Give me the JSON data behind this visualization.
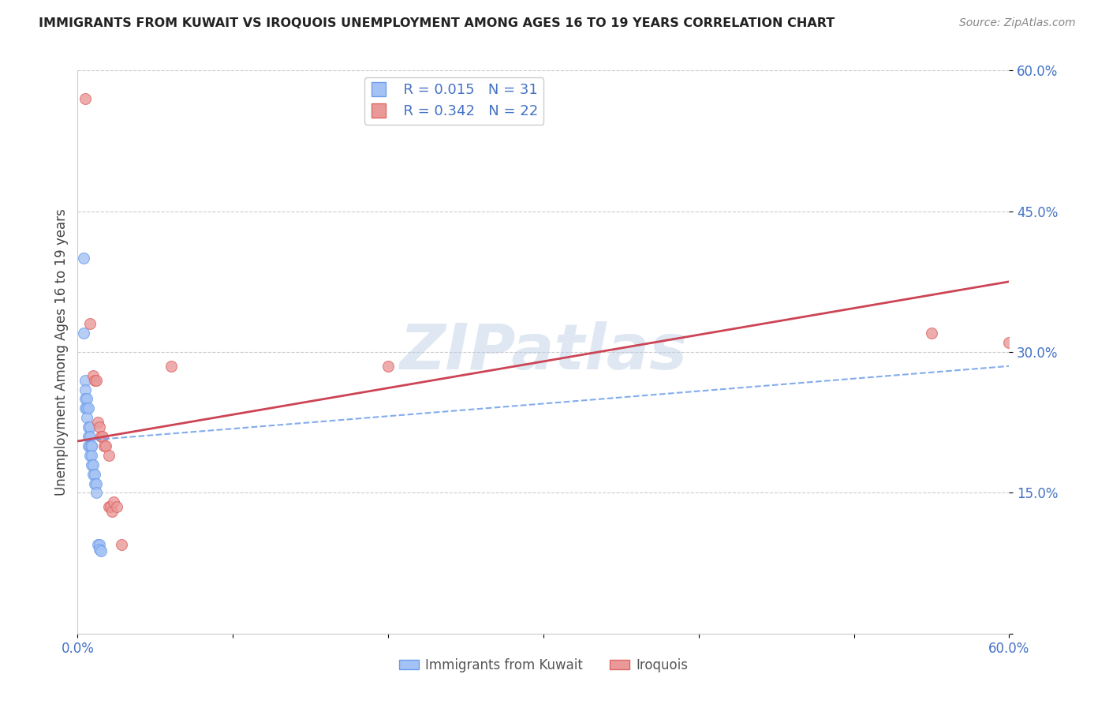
{
  "title": "IMMIGRANTS FROM KUWAIT VS IROQUOIS UNEMPLOYMENT AMONG AGES 16 TO 19 YEARS CORRELATION CHART",
  "source": "Source: ZipAtlas.com",
  "ylabel": "Unemployment Among Ages 16 to 19 years",
  "xlim": [
    0.0,
    0.6
  ],
  "ylim": [
    0.0,
    0.6
  ],
  "xtick_positions": [
    0.0,
    0.1,
    0.2,
    0.3,
    0.4,
    0.5,
    0.6
  ],
  "xtick_labels": [
    "0.0%",
    "",
    "",
    "",
    "",
    "",
    "60.0%"
  ],
  "ytick_positions": [
    0.0,
    0.15,
    0.3,
    0.45,
    0.6
  ],
  "ytick_labels": [
    "",
    "15.0%",
    "30.0%",
    "45.0%",
    "60.0%"
  ],
  "blue_R": 0.015,
  "blue_N": 31,
  "pink_R": 0.342,
  "pink_N": 22,
  "blue_color": "#a4c2f4",
  "pink_color": "#ea9999",
  "blue_edge_color": "#6d9eeb",
  "pink_edge_color": "#e06666",
  "blue_line_color": "#6d9eeb",
  "pink_line_color": "#cc4455",
  "title_color": "#222222",
  "axis_label_color": "#444444",
  "tick_color": "#4472c4",
  "grid_color": "#cccccc",
  "watermark": "ZIPatlas",
  "blue_x": [
    0.004,
    0.004,
    0.005,
    0.005,
    0.005,
    0.005,
    0.006,
    0.006,
    0.006,
    0.007,
    0.007,
    0.007,
    0.007,
    0.008,
    0.008,
    0.008,
    0.008,
    0.009,
    0.009,
    0.009,
    0.009,
    0.01,
    0.01,
    0.011,
    0.011,
    0.012,
    0.012,
    0.013,
    0.014,
    0.014,
    0.015
  ],
  "blue_y": [
    0.4,
    0.32,
    0.27,
    0.26,
    0.25,
    0.24,
    0.25,
    0.24,
    0.23,
    0.24,
    0.22,
    0.21,
    0.2,
    0.22,
    0.21,
    0.2,
    0.19,
    0.2,
    0.2,
    0.19,
    0.18,
    0.18,
    0.17,
    0.17,
    0.16,
    0.16,
    0.15,
    0.095,
    0.095,
    0.09,
    0.088
  ],
  "pink_x": [
    0.005,
    0.008,
    0.01,
    0.011,
    0.012,
    0.013,
    0.014,
    0.015,
    0.016,
    0.017,
    0.018,
    0.02,
    0.02,
    0.021,
    0.022,
    0.023,
    0.025,
    0.028,
    0.06,
    0.2,
    0.55,
    0.6
  ],
  "pink_y": [
    0.57,
    0.33,
    0.275,
    0.27,
    0.27,
    0.225,
    0.22,
    0.21,
    0.21,
    0.2,
    0.2,
    0.19,
    0.135,
    0.135,
    0.13,
    0.14,
    0.135,
    0.095,
    0.285,
    0.285,
    0.32,
    0.31
  ],
  "blue_trend_x": [
    0.0,
    0.6
  ],
  "blue_trend_y": [
    0.205,
    0.285
  ],
  "pink_trend_x": [
    0.0,
    0.6
  ],
  "pink_trend_y": [
    0.205,
    0.375
  ]
}
